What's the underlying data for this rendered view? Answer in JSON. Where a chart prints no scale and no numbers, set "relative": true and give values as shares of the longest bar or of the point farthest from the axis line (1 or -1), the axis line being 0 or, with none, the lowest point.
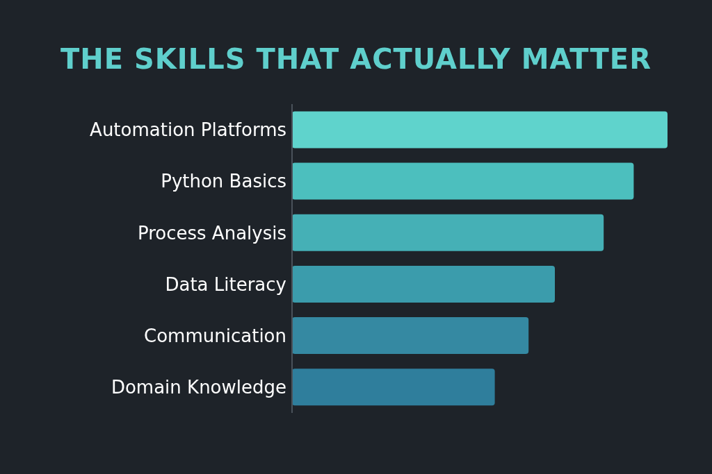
{
  "chart_data": {
    "type": "bar",
    "orientation": "horizontal",
    "relative": true,
    "title": "THE SKILLS THAT ACTUALLY MATTER",
    "categories": [
      "Automation Platforms",
      "Python Basics",
      "Process Analysis",
      "Data Literacy",
      "Communication",
      "Domain Knowledge"
    ],
    "values": [
      1,
      0.91,
      0.83,
      0.7,
      0.63,
      0.54
    ],
    "colors": [
      "#5fd3cc",
      "#4cbfbe",
      "#45b0b6",
      "#3b9cac",
      "#3589a2",
      "#2f7e9c"
    ]
  }
}
